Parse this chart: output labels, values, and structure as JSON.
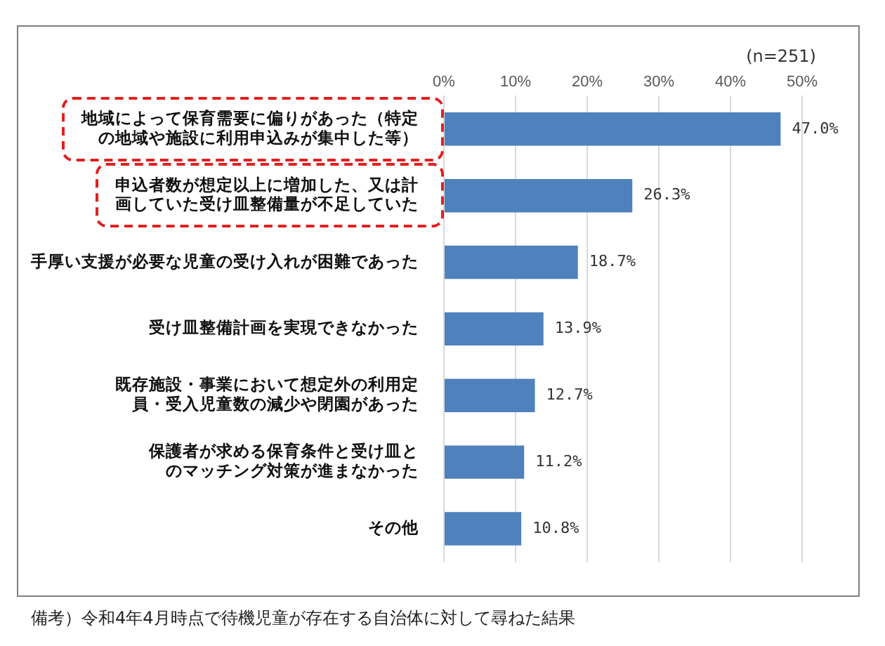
{
  "chart_data": {
    "type": "bar",
    "orientation": "horizontal",
    "categories": [
      "地域によって保育需要に偏りがあった（特定の地域や施設に利用申込みが集中した等）",
      "申込者数が想定以上に増加した、又は計画していた受け皿整備量が不足していた",
      "手厚い支援が必要な児童の受け入れが困難であった",
      "受け皿整備計画を実現できなかった",
      "既存施設・事業において想定外の利用定員・受入児童数の減少や閉園があった",
      "保護者が求める保育条件と受け皿とのマッチング対策が進まなかった",
      "その他"
    ],
    "values": [
      47.0,
      26.3,
      18.7,
      13.9,
      12.7,
      11.2,
      10.8
    ],
    "value_labels": [
      "47.0%",
      "26.3%",
      "18.7%",
      "13.9%",
      "12.7%",
      "11.2%",
      "10.8%"
    ],
    "color": "#4f81bd",
    "xlim": [
      0,
      50
    ],
    "xticks": [
      {
        "value": 0,
        "label": "0%"
      },
      {
        "value": 10,
        "label": "10%"
      },
      {
        "value": 20,
        "label": "20%"
      },
      {
        "value": 30,
        "label": "30%"
      },
      {
        "value": 40,
        "label": "40%"
      },
      {
        "value": 50,
        "label": "50%"
      }
    ],
    "grid": "x",
    "legend": false,
    "annotations": [
      "(n=251)",
      "備考）令和4年4月時点で待機児童が存在する自治体に対して尋ねた結果"
    ]
  }
}
